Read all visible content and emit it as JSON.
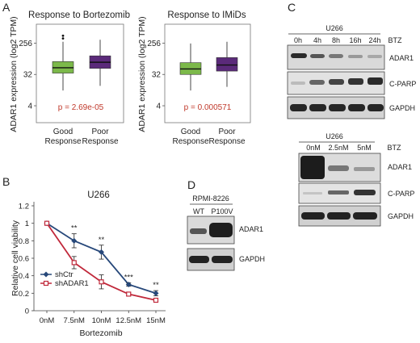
{
  "panels": {
    "A": "A",
    "B": "B",
    "C": "C",
    "D": "D"
  },
  "colors": {
    "good": "#7cb94a",
    "poor": "#5b2a7a",
    "pval": "#c0392b",
    "shCtr": "#27487a",
    "shADAR1": "#c0283a"
  },
  "chart_data": [
    {
      "type": "box",
      "title": "Response to Bortezomib",
      "ylabel": "ADAR1 expression (log2 TPM)",
      "yscale": "log2",
      "yticks": [
        4,
        32,
        256
      ],
      "ylim": [
        1.3,
        900
      ],
      "categories": [
        "Good Response",
        "Poor Response"
      ],
      "boxes": [
        {
          "name": "Good Response",
          "whisker_low": 11,
          "q1": 35,
          "median": 50,
          "q3": 75,
          "whisker_high": 280,
          "outliers": [
            350,
            420
          ],
          "color": "#7cb94a"
        },
        {
          "name": "Poor Response",
          "whisker_low": 15,
          "q1": 48,
          "median": 72,
          "q3": 110,
          "whisker_high": 320,
          "outliers": [],
          "color": "#5b2a7a"
        }
      ],
      "annotation": "p = 2.69e-05"
    },
    {
      "type": "box",
      "title": "Response to IMiDs",
      "ylabel": "ADAR1 expression (log2 TPM)",
      "yscale": "log2",
      "yticks": [
        4,
        32,
        256
      ],
      "ylim": [
        1.3,
        900
      ],
      "categories": [
        "Good Response",
        "Poor Response"
      ],
      "boxes": [
        {
          "name": "Good Response",
          "whisker_low": 11,
          "q1": 32,
          "median": 46,
          "q3": 70,
          "whisker_high": 250,
          "outliers": [],
          "color": "#7cb94a"
        },
        {
          "name": "Poor Response",
          "whisker_low": 14,
          "q1": 40,
          "median": 60,
          "q3": 98,
          "whisker_high": 280,
          "outliers": [],
          "color": "#5b2a7a"
        }
      ],
      "annotation": "p = 0.000571"
    },
    {
      "type": "line",
      "title": "U266",
      "xlabel": "Bortezomib",
      "ylabel": "Relative cell viability",
      "categories": [
        "0nM",
        "7.5nM",
        "10nM",
        "12.5nM",
        "15nM"
      ],
      "yticks": [
        "0",
        "0.2",
        "0.4",
        "0.6",
        "0.8",
        "1",
        "1.2"
      ],
      "ylim": [
        0,
        1.2
      ],
      "series": [
        {
          "name": "shCtr",
          "values": [
            1.0,
            0.8,
            0.67,
            0.3,
            0.2
          ],
          "errors": [
            0,
            0.08,
            0.08,
            0.02,
            0.03
          ],
          "color": "#27487a",
          "marker": "diamond"
        },
        {
          "name": "shADAR1",
          "values": [
            1.0,
            0.55,
            0.33,
            0.19,
            0.12
          ],
          "errors": [
            0,
            0.07,
            0.08,
            0.02,
            0.02
          ],
          "color": "#c0283a",
          "marker": "square"
        }
      ],
      "significance": [
        "",
        "**",
        "**",
        "***",
        "**"
      ],
      "legend": "bottom-left"
    }
  ],
  "blotC1": {
    "cell_line": "U266",
    "lanes": [
      "0h",
      "4h",
      "8h",
      "16h",
      "24h"
    ],
    "treatment": "BTZ",
    "bands": [
      "ADAR1",
      "C-PARP",
      "GAPDH"
    ]
  },
  "blotC2": {
    "cell_line": "U266",
    "lanes": [
      "0nM",
      "2.5nM",
      "5nM"
    ],
    "treatment": "BTZ",
    "bands": [
      "ADAR1",
      "C-PARP",
      "GAPDH"
    ]
  },
  "blotD": {
    "cell_line": "RPMI-8226",
    "lanes": [
      "WT",
      "P100V"
    ],
    "bands": [
      "ADAR1",
      "GAPDH"
    ]
  }
}
